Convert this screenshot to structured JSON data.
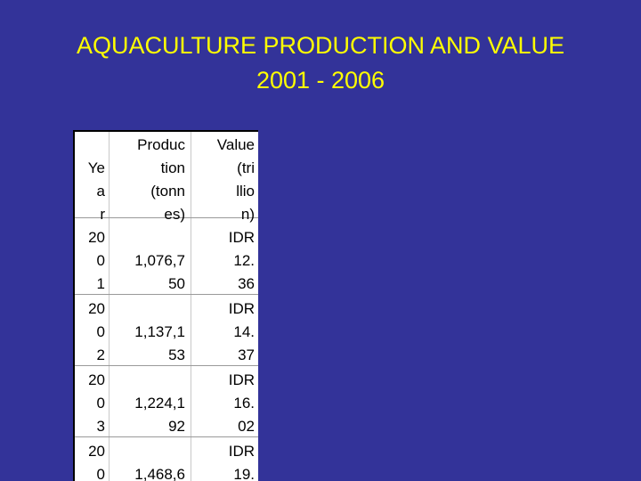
{
  "title": {
    "line1": "AQUACULTURE PRODUCTION AND VALUE",
    "line2": "2001 - 2006"
  },
  "table": {
    "headers": [
      [
        "Ye",
        "a",
        "r"
      ],
      [
        "Produc",
        "tion",
        "(tonn",
        "es)"
      ],
      [
        "Value",
        "(tri",
        "llio",
        "n)"
      ]
    ],
    "rows": [
      {
        "year": [
          "20",
          "0",
          "1"
        ],
        "production": [
          "1,076,7",
          "50"
        ],
        "value": [
          "IDR",
          "12.",
          "36"
        ]
      },
      {
        "year": [
          "20",
          "0",
          "2"
        ],
        "production": [
          "1,137,1",
          "53"
        ],
        "value": [
          "IDR",
          "14.",
          "37"
        ]
      },
      {
        "year": [
          "20",
          "0",
          "3"
        ],
        "production": [
          "1,224,1",
          "92"
        ],
        "value": [
          "IDR",
          "16.",
          "02"
        ]
      },
      {
        "year": [
          "20",
          "0"
        ],
        "production": [
          "1,468,6"
        ],
        "value": [
          "IDR",
          "19."
        ]
      }
    ]
  }
}
